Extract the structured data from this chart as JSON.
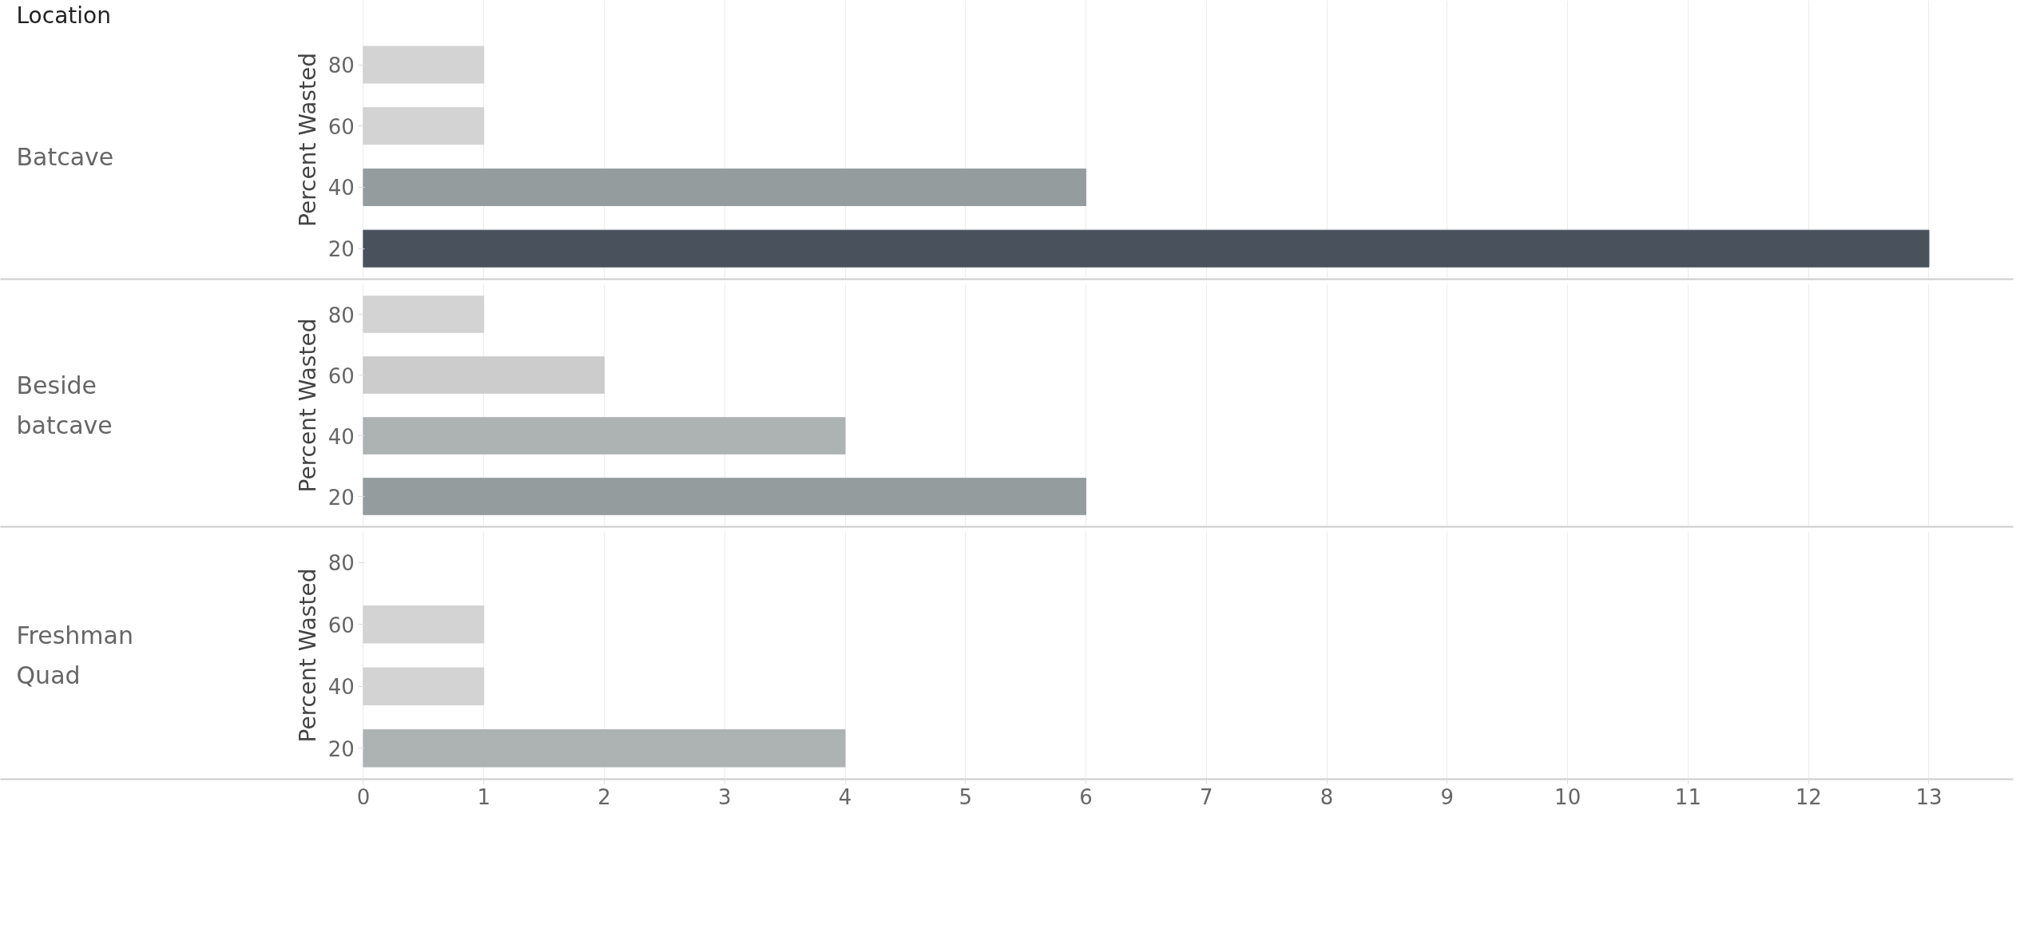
{
  "chart_data": [
    {
      "type": "bar",
      "orientation": "horizontal",
      "ylabel": "Percent Wasted",
      "annotations": [
        "Location",
        "Batcave"
      ],
      "categories": [
        "80",
        "60",
        "40",
        "20"
      ],
      "values": [
        1,
        1,
        6,
        13
      ],
      "colors": [
        "#d3d3d3",
        "#d3d3d3",
        "#949c9e",
        "#48515c"
      ],
      "xlim": [
        0,
        13.7
      ],
      "xticks": [
        0,
        1,
        2,
        3,
        4,
        5,
        6,
        7,
        8,
        9,
        10,
        11,
        12,
        13
      ],
      "grid": "x",
      "tick_labels": "y"
    },
    {
      "type": "bar",
      "orientation": "horizontal",
      "ylabel": "Percent Wasted",
      "annotations": [
        "Beside batcave"
      ],
      "categories": [
        "80",
        "60",
        "40",
        "20"
      ],
      "values": [
        1,
        2,
        4,
        6
      ],
      "colors": [
        "#d3d3d3",
        "#cbcccb",
        "#adb3b2",
        "#949c9e"
      ],
      "xlim": [
        0,
        13.7
      ],
      "xticks": [
        0,
        1,
        2,
        3,
        4,
        5,
        6,
        7,
        8,
        9,
        10,
        11,
        12,
        13
      ],
      "grid": "x",
      "tick_labels": "y"
    },
    {
      "type": "bar",
      "orientation": "horizontal",
      "ylabel": "Percent Wasted",
      "annotations": [
        "Freshman Quad"
      ],
      "categories": [
        "80",
        "60",
        "40",
        "20"
      ],
      "values": [
        null,
        1,
        1,
        4
      ],
      "colors": [
        "#d3d3d3",
        "#d3d3d3",
        "#d3d3d3",
        "#adb3b2"
      ],
      "xlim": [
        0,
        13.7
      ],
      "xticks": [
        0,
        1,
        2,
        3,
        4,
        5,
        6,
        7,
        8,
        9,
        10,
        11,
        12,
        13
      ],
      "grid": "x"
    }
  ]
}
